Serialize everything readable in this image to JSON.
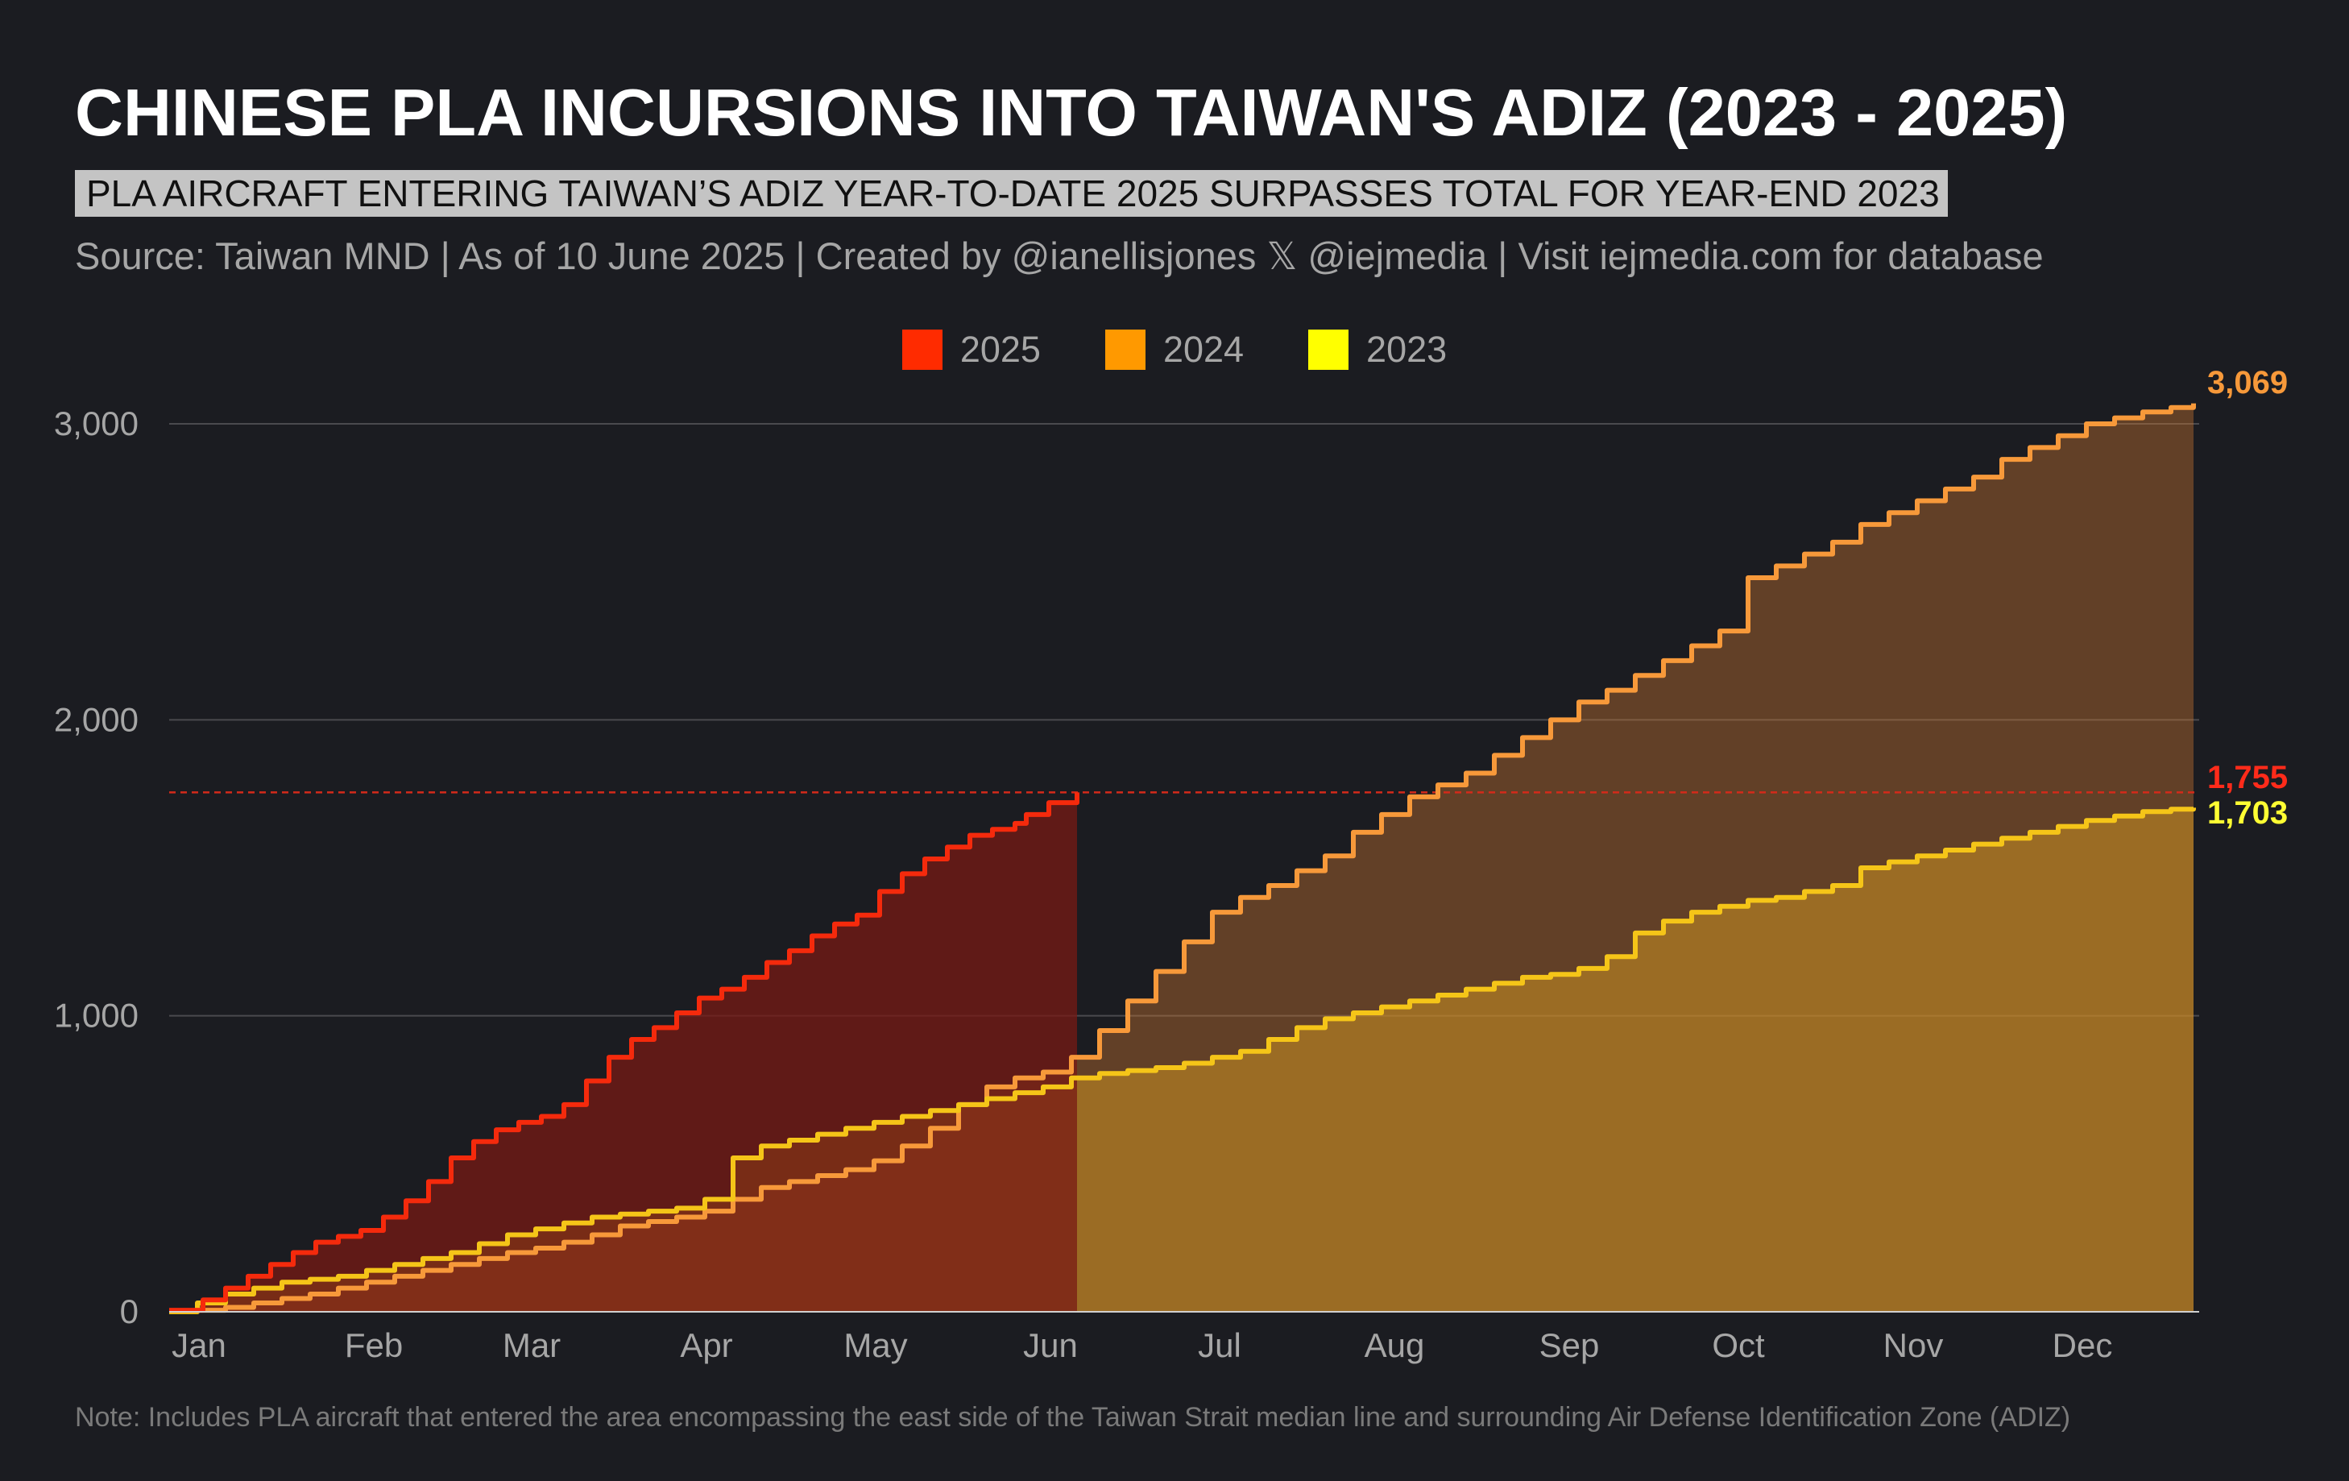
{
  "header": {
    "title": "CHINESE PLA INCURSIONS INTO TAIWAN'S ADIZ (2023 - 2025)",
    "subtitle": "PLA AIRCRAFT ENTERING TAIWAN’S ADIZ YEAR-TO-DATE 2025 SURPASSES TOTAL FOR YEAR-END 2023",
    "source": "Source: Taiwan MND | As of 10 June 2025 | Created by @ianellisjones 𝕏 @iejmedia | Visit iejmedia.com for database"
  },
  "footer": {
    "note": "Note: Includes PLA aircraft that entered the area encompassing the east side of the Taiwan Strait median line and surrounding Air Defense Identification Zone (ADIZ)"
  },
  "colors": {
    "c2025": "#f52a0c",
    "c2024": "#f7993a",
    "c2023": "#f5c518",
    "legend2025": "#ff2b00",
    "legend2024": "#ff9900",
    "legend2023": "#ffff00"
  },
  "chart_data": {
    "type": "area",
    "title": "CHINESE PLA INCURSIONS INTO TAIWAN'S ADIZ (2023 - 2025)",
    "xlabel": "",
    "ylabel": "",
    "xlim": [
      0,
      360
    ],
    "ylim": [
      0,
      3000
    ],
    "grid": true,
    "legend_position": "top-center",
    "x_ticks": [
      {
        "label": "Jan",
        "x": 1
      },
      {
        "label": "Feb",
        "x": 32
      },
      {
        "label": "Mar",
        "x": 60
      },
      {
        "label": "Apr",
        "x": 91
      },
      {
        "label": "May",
        "x": 121
      },
      {
        "label": "Jun",
        "x": 152
      },
      {
        "label": "Jul",
        "x": 182
      },
      {
        "label": "Aug",
        "x": 213
      },
      {
        "label": "Sep",
        "x": 244
      },
      {
        "label": "Oct",
        "x": 274
      },
      {
        "label": "Nov",
        "x": 305
      },
      {
        "label": "Dec",
        "x": 335
      }
    ],
    "y_ticks": [
      {
        "label": "0",
        "value": 0
      },
      {
        "label": "1,000",
        "value": 1000
      },
      {
        "label": "2,000",
        "value": 2000
      },
      {
        "label": "3,000",
        "value": 3000
      }
    ],
    "reference_line": {
      "value": 1755,
      "label": "1,755"
    },
    "series": [
      {
        "name": "2025",
        "end_label": "1,755",
        "x": [
          0,
          6,
          10,
          14,
          18,
          22,
          26,
          30,
          34,
          38,
          42,
          46,
          50,
          54,
          58,
          62,
          66,
          70,
          74,
          78,
          82,
          86,
          90,
          94,
          98,
          102,
          106,
          110,
          114,
          118,
          122,
          126,
          130,
          134,
          138,
          142,
          146,
          150,
          152,
          156,
          161
        ],
        "values": [
          5,
          40,
          80,
          120,
          160,
          200,
          235,
          255,
          275,
          320,
          375,
          440,
          520,
          575,
          615,
          640,
          660,
          700,
          780,
          860,
          920,
          960,
          1010,
          1060,
          1090,
          1130,
          1180,
          1220,
          1270,
          1310,
          1340,
          1420,
          1480,
          1530,
          1570,
          1610,
          1630,
          1650,
          1680,
          1720,
          1755
        ]
      },
      {
        "name": "2024",
        "end_label": "3,069",
        "x": [
          0,
          5,
          10,
          15,
          20,
          25,
          30,
          35,
          40,
          45,
          50,
          55,
          60,
          65,
          70,
          75,
          80,
          85,
          90,
          95,
          100,
          105,
          110,
          115,
          120,
          125,
          130,
          135,
          140,
          145,
          150,
          155,
          160,
          165,
          170,
          175,
          180,
          185,
          190,
          195,
          200,
          205,
          210,
          215,
          220,
          225,
          230,
          235,
          240,
          245,
          250,
          255,
          260,
          265,
          270,
          275,
          280,
          285,
          290,
          295,
          300,
          305,
          310,
          315,
          320,
          325,
          330,
          335,
          340,
          345,
          350,
          355,
          359
        ],
        "values": [
          0,
          5,
          15,
          30,
          45,
          60,
          80,
          100,
          120,
          140,
          160,
          180,
          200,
          215,
          235,
          260,
          290,
          305,
          320,
          340,
          380,
          420,
          440,
          460,
          480,
          510,
          560,
          620,
          700,
          760,
          790,
          810,
          860,
          950,
          1050,
          1150,
          1250,
          1350,
          1400,
          1440,
          1490,
          1540,
          1620,
          1680,
          1740,
          1780,
          1820,
          1880,
          1940,
          2000,
          2060,
          2100,
          2150,
          2200,
          2250,
          2300,
          2480,
          2520,
          2560,
          2600,
          2660,
          2700,
          2740,
          2780,
          2820,
          2880,
          2920,
          2960,
          3000,
          3020,
          3040,
          3055,
          3069
        ]
      },
      {
        "name": "2023",
        "end_label": "1,703",
        "x": [
          0,
          5,
          10,
          15,
          20,
          25,
          30,
          35,
          40,
          45,
          50,
          55,
          60,
          65,
          70,
          75,
          80,
          85,
          90,
          95,
          100,
          105,
          110,
          115,
          120,
          125,
          130,
          135,
          140,
          145,
          150,
          155,
          160,
          165,
          170,
          175,
          180,
          185,
          190,
          195,
          200,
          205,
          210,
          215,
          220,
          225,
          230,
          235,
          240,
          245,
          250,
          255,
          260,
          265,
          270,
          275,
          280,
          285,
          290,
          295,
          300,
          305,
          310,
          315,
          320,
          325,
          330,
          335,
          340,
          345,
          350,
          355,
          359
        ],
        "values": [
          0,
          30,
          60,
          80,
          100,
          110,
          120,
          140,
          160,
          180,
          200,
          230,
          260,
          280,
          300,
          320,
          330,
          340,
          350,
          380,
          520,
          560,
          580,
          600,
          620,
          640,
          660,
          680,
          700,
          720,
          740,
          760,
          790,
          805,
          815,
          825,
          840,
          860,
          880,
          920,
          960,
          990,
          1010,
          1030,
          1050,
          1070,
          1090,
          1110,
          1130,
          1140,
          1160,
          1200,
          1280,
          1320,
          1350,
          1370,
          1390,
          1400,
          1420,
          1440,
          1500,
          1520,
          1540,
          1560,
          1580,
          1600,
          1620,
          1640,
          1660,
          1675,
          1690,
          1698,
          1703
        ]
      }
    ]
  }
}
